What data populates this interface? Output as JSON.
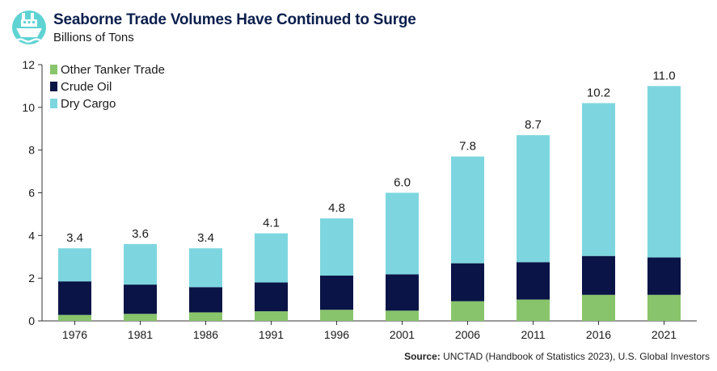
{
  "header": {
    "title": "Seaborne Trade Volumes Have Continued to Surge",
    "subtitle": "Billions of Tons",
    "logo_icon": "ship-icon"
  },
  "source": {
    "label": "Source:",
    "text": "UNCTAD (Handbook of Statistics 2023), U.S. Global Investors"
  },
  "colors": {
    "other_tanker": "#88c46b",
    "crude_oil": "#0a1446",
    "dry_cargo": "#7dd6df",
    "logo_bg": "#5fd3d3"
  },
  "chart_data": {
    "type": "bar",
    "stacked": true,
    "categories": [
      "1976",
      "1981",
      "1986",
      "1991",
      "1996",
      "2001",
      "2006",
      "2011",
      "2016",
      "2021"
    ],
    "series": [
      {
        "name": "Other Tanker Trade",
        "values": [
          0.28,
          0.33,
          0.4,
          0.45,
          0.52,
          0.48,
          0.92,
          1.0,
          1.22,
          1.22
        ]
      },
      {
        "name": "Crude Oil",
        "values": [
          1.57,
          1.37,
          1.18,
          1.35,
          1.6,
          1.7,
          1.78,
          1.75,
          1.82,
          1.75
        ]
      },
      {
        "name": "Dry Cargo",
        "values": [
          1.55,
          1.9,
          1.82,
          2.3,
          2.68,
          3.82,
          5.0,
          5.95,
          7.16,
          8.03
        ]
      }
    ],
    "totals": [
      "3.4",
      "3.6",
      "3.4",
      "4.1",
      "4.8",
      "6.0",
      "7.8",
      "8.7",
      "10.2",
      "11.0"
    ],
    "ylim": [
      0,
      12
    ],
    "yticks": [
      0,
      2,
      4,
      6,
      8,
      10,
      12
    ],
    "grid": false,
    "legend": "top-left"
  }
}
